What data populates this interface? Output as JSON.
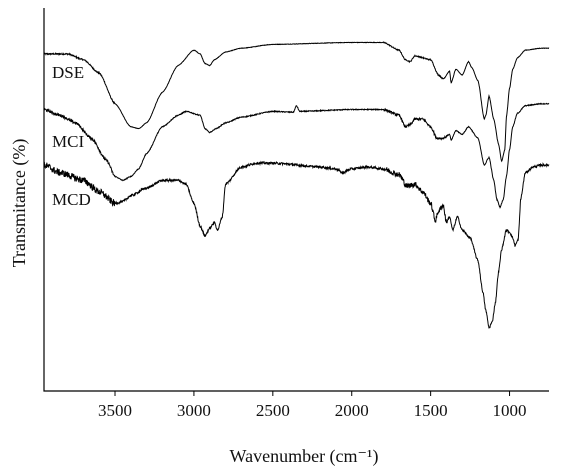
{
  "chart_data": {
    "type": "line",
    "title": "",
    "xlabel": "Wavenumber (cm⁻¹)",
    "ylabel": "Transmitance (%)",
    "xlim": [
      3950,
      750
    ],
    "x_reversed": true,
    "ylim": [
      0,
      100
    ],
    "y_ticks_shown": false,
    "grid": false,
    "legend": "none",
    "x_ticks": [
      3500,
      3000,
      2500,
      2000,
      1500,
      1000
    ],
    "x_tick_labels": [
      "3500",
      "3000",
      "2500",
      "2000",
      "1500",
      "1000"
    ],
    "series": [
      {
        "name": "DSE",
        "color": "#000000",
        "noise": 0.25,
        "points": [
          [
            3950,
            88
          ],
          [
            3800,
            88
          ],
          [
            3700,
            86.5
          ],
          [
            3600,
            83
          ],
          [
            3500,
            75
          ],
          [
            3400,
            69
          ],
          [
            3350,
            68.5
          ],
          [
            3300,
            70
          ],
          [
            3200,
            78
          ],
          [
            3100,
            85
          ],
          [
            3000,
            89
          ],
          [
            2960,
            88
          ],
          [
            2930,
            85.5
          ],
          [
            2900,
            85
          ],
          [
            2870,
            86.5
          ],
          [
            2800,
            88.5
          ],
          [
            2700,
            89.5
          ],
          [
            2500,
            90.5
          ],
          [
            2000,
            91
          ],
          [
            1800,
            91
          ],
          [
            1700,
            89
          ],
          [
            1660,
            86.5
          ],
          [
            1630,
            86
          ],
          [
            1600,
            87.5
          ],
          [
            1500,
            86.5
          ],
          [
            1450,
            82.5
          ],
          [
            1420,
            81.5
          ],
          [
            1380,
            83.5
          ],
          [
            1370,
            80.5
          ],
          [
            1340,
            84
          ],
          [
            1300,
            82.5
          ],
          [
            1260,
            86
          ],
          [
            1240,
            84.5
          ],
          [
            1200,
            81
          ],
          [
            1160,
            71
          ],
          [
            1150,
            72
          ],
          [
            1130,
            77
          ],
          [
            1100,
            71
          ],
          [
            1070,
            64.5
          ],
          [
            1050,
            60
          ],
          [
            1030,
            63
          ],
          [
            1020,
            71.5
          ],
          [
            1000,
            79
          ],
          [
            980,
            84
          ],
          [
            950,
            87
          ],
          [
            900,
            89
          ],
          [
            800,
            89.5
          ],
          [
            750,
            89.5
          ]
        ]
      },
      {
        "name": "MCI",
        "color": "#000000",
        "noise": 0.5,
        "points": [
          [
            3950,
            73.5
          ],
          [
            3850,
            72
          ],
          [
            3750,
            70
          ],
          [
            3650,
            66
          ],
          [
            3550,
            60
          ],
          [
            3500,
            56
          ],
          [
            3450,
            55
          ],
          [
            3400,
            56
          ],
          [
            3350,
            58
          ],
          [
            3300,
            62
          ],
          [
            3200,
            69
          ],
          [
            3100,
            72
          ],
          [
            3050,
            73
          ],
          [
            2960,
            72
          ],
          [
            2930,
            68.5
          ],
          [
            2900,
            67.5
          ],
          [
            2860,
            68.5
          ],
          [
            2800,
            70
          ],
          [
            2700,
            71.5
          ],
          [
            2500,
            73
          ],
          [
            2370,
            72.8
          ],
          [
            2350,
            74.5
          ],
          [
            2330,
            73
          ],
          [
            2000,
            73.5
          ],
          [
            1800,
            73.5
          ],
          [
            1700,
            72
          ],
          [
            1660,
            69
          ],
          [
            1630,
            69.5
          ],
          [
            1600,
            71
          ],
          [
            1550,
            71
          ],
          [
            1500,
            69
          ],
          [
            1460,
            66
          ],
          [
            1420,
            66
          ],
          [
            1380,
            67
          ],
          [
            1370,
            65.5
          ],
          [
            1340,
            68
          ],
          [
            1300,
            67
          ],
          [
            1260,
            69
          ],
          [
            1200,
            66
          ],
          [
            1160,
            59
          ],
          [
            1130,
            61
          ],
          [
            1100,
            55
          ],
          [
            1080,
            50
          ],
          [
            1060,
            48
          ],
          [
            1040,
            50
          ],
          [
            1020,
            56
          ],
          [
            1000,
            63
          ],
          [
            980,
            69
          ],
          [
            950,
            72.5
          ],
          [
            900,
            74.5
          ],
          [
            800,
            75
          ],
          [
            750,
            75
          ]
        ]
      },
      {
        "name": "MCD",
        "color": "#000000",
        "noise": 1.3,
        "points": [
          [
            3950,
            59
          ],
          [
            3850,
            57
          ],
          [
            3700,
            55
          ],
          [
            3600,
            52
          ],
          [
            3500,
            49
          ],
          [
            3450,
            49.5
          ],
          [
            3400,
            51
          ],
          [
            3300,
            53
          ],
          [
            3200,
            55
          ],
          [
            3100,
            55
          ],
          [
            3050,
            54
          ],
          [
            3000,
            49
          ],
          [
            2960,
            43
          ],
          [
            2930,
            40.5
          ],
          [
            2900,
            42.5
          ],
          [
            2870,
            44
          ],
          [
            2850,
            42
          ],
          [
            2820,
            45.5
          ],
          [
            2800,
            54
          ],
          [
            2700,
            58.5
          ],
          [
            2600,
            59.5
          ],
          [
            2500,
            59.5
          ],
          [
            2200,
            58.5
          ],
          [
            2100,
            58
          ],
          [
            2060,
            57
          ],
          [
            2000,
            58
          ],
          [
            1900,
            58.5
          ],
          [
            1800,
            58
          ],
          [
            1700,
            56.5
          ],
          [
            1650,
            53.5
          ],
          [
            1600,
            54
          ],
          [
            1550,
            52
          ],
          [
            1500,
            49
          ],
          [
            1470,
            44.5
          ],
          [
            1450,
            47
          ],
          [
            1420,
            48.5
          ],
          [
            1400,
            44
          ],
          [
            1380,
            45.5
          ],
          [
            1360,
            42
          ],
          [
            1330,
            45.5
          ],
          [
            1300,
            42
          ],
          [
            1250,
            40
          ],
          [
            1200,
            34
          ],
          [
            1170,
            26
          ],
          [
            1150,
            21
          ],
          [
            1130,
            16.5
          ],
          [
            1110,
            18
          ],
          [
            1090,
            23
          ],
          [
            1070,
            31
          ],
          [
            1050,
            37
          ],
          [
            1020,
            42
          ],
          [
            1000,
            41.5
          ],
          [
            980,
            40
          ],
          [
            965,
            38
          ],
          [
            945,
            39.5
          ],
          [
            940,
            42.5
          ],
          [
            930,
            50
          ],
          [
            900,
            57
          ],
          [
            850,
            58.5
          ],
          [
            800,
            59
          ],
          [
            750,
            59
          ]
        ]
      }
    ]
  }
}
